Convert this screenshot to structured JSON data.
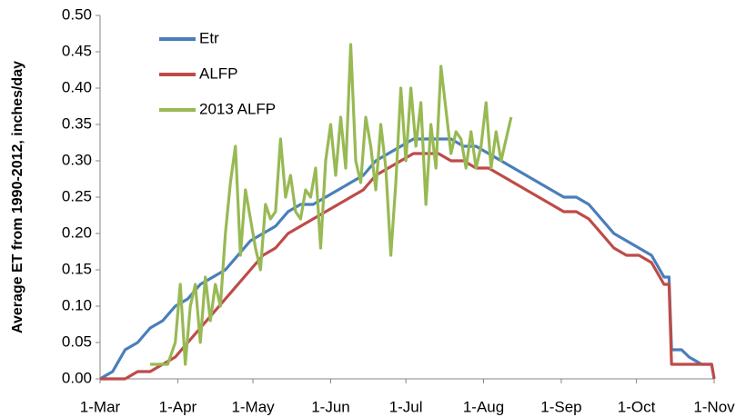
{
  "chart_data": {
    "type": "line",
    "y_label": "Average ET from 1990-2012, inches/day",
    "xlim": [
      0,
      245
    ],
    "xticks": [
      {
        "value": 0,
        "label": "1-Mar"
      },
      {
        "value": 31,
        "label": "1-Apr"
      },
      {
        "value": 61,
        "label": "1-May"
      },
      {
        "value": 92,
        "label": "1-Jun"
      },
      {
        "value": 122,
        "label": "1-Jul"
      },
      {
        "value": 153,
        "label": "1-Aug"
      },
      {
        "value": 184,
        "label": "1-Sep"
      },
      {
        "value": 214,
        "label": "1-Oct"
      },
      {
        "value": 245,
        "label": "1-Nov"
      }
    ],
    "ylim": [
      0,
      0.5
    ],
    "yticks": [
      {
        "value": 0,
        "label": "0.00"
      },
      {
        "value": 0.05,
        "label": "0.05"
      },
      {
        "value": 0.1,
        "label": "0.10"
      },
      {
        "value": 0.15,
        "label": "0.15"
      },
      {
        "value": 0.2,
        "label": "0.20"
      },
      {
        "value": 0.25,
        "label": "0.25"
      },
      {
        "value": 0.3,
        "label": "0.30"
      },
      {
        "value": 0.35,
        "label": "0.35"
      },
      {
        "value": 0.4,
        "label": "0.40"
      },
      {
        "value": 0.45,
        "label": "0.45"
      },
      {
        "value": 0.5,
        "label": "0.50"
      }
    ],
    "grid": false,
    "legend": "upper left",
    "series": [
      {
        "name": "Etr",
        "color": "#4a7ebb",
        "x": [
          0,
          5,
          10,
          15,
          20,
          25,
          30,
          35,
          40,
          45,
          50,
          55,
          60,
          65,
          70,
          75,
          80,
          85,
          90,
          95,
          100,
          105,
          110,
          115,
          120,
          125,
          130,
          135,
          140,
          145,
          150,
          155,
          160,
          165,
          170,
          175,
          180,
          185,
          190,
          195,
          200,
          205,
          210,
          215,
          220,
          225,
          227,
          228,
          232,
          235,
          240,
          244,
          245
        ],
        "values": [
          0,
          0.01,
          0.04,
          0.05,
          0.07,
          0.08,
          0.1,
          0.11,
          0.13,
          0.14,
          0.15,
          0.17,
          0.19,
          0.2,
          0.21,
          0.23,
          0.24,
          0.24,
          0.25,
          0.26,
          0.27,
          0.28,
          0.3,
          0.31,
          0.32,
          0.33,
          0.33,
          0.33,
          0.33,
          0.32,
          0.32,
          0.31,
          0.3,
          0.29,
          0.28,
          0.27,
          0.26,
          0.25,
          0.25,
          0.24,
          0.22,
          0.2,
          0.19,
          0.18,
          0.17,
          0.14,
          0.14,
          0.04,
          0.04,
          0.03,
          0.02,
          0.02,
          0
        ]
      },
      {
        "name": "ALFP",
        "color": "#be4b48",
        "x": [
          0,
          5,
          10,
          15,
          20,
          25,
          30,
          35,
          40,
          45,
          50,
          55,
          60,
          65,
          70,
          75,
          80,
          85,
          90,
          95,
          100,
          105,
          110,
          115,
          120,
          125,
          130,
          135,
          140,
          145,
          150,
          155,
          160,
          165,
          170,
          175,
          180,
          185,
          190,
          195,
          200,
          205,
          210,
          215,
          220,
          225,
          227,
          228,
          232,
          235,
          240,
          244,
          245
        ],
        "values": [
          0,
          0,
          0,
          0.01,
          0.01,
          0.02,
          0.03,
          0.05,
          0.07,
          0.09,
          0.11,
          0.13,
          0.15,
          0.17,
          0.18,
          0.2,
          0.21,
          0.22,
          0.23,
          0.24,
          0.25,
          0.26,
          0.28,
          0.29,
          0.3,
          0.31,
          0.31,
          0.31,
          0.3,
          0.3,
          0.29,
          0.29,
          0.28,
          0.27,
          0.26,
          0.25,
          0.24,
          0.23,
          0.23,
          0.22,
          0.2,
          0.18,
          0.17,
          0.17,
          0.16,
          0.13,
          0.13,
          0.02,
          0.02,
          0.02,
          0.02,
          0.02,
          0
        ]
      },
      {
        "name": "2013 ALFP",
        "color": "#98b954",
        "x": [
          20,
          24,
          27,
          30,
          32,
          34,
          36,
          38,
          40,
          42,
          44,
          46,
          48,
          50,
          52,
          54,
          56,
          58,
          60,
          62,
          64,
          66,
          68,
          70,
          72,
          74,
          76,
          78,
          80,
          82,
          84,
          86,
          88,
          90,
          92,
          94,
          96,
          98,
          100,
          102,
          104,
          106,
          108,
          110,
          112,
          114,
          116,
          118,
          120,
          122,
          124,
          126,
          128,
          130,
          132,
          134,
          136,
          138,
          140,
          142,
          144,
          146,
          148,
          150,
          152,
          154,
          156,
          158,
          160,
          162,
          164
        ],
        "values": [
          0.02,
          0.02,
          0.02,
          0.05,
          0.13,
          0.02,
          0.1,
          0.13,
          0.05,
          0.14,
          0.08,
          0.13,
          0.1,
          0.2,
          0.27,
          0.32,
          0.17,
          0.26,
          0.22,
          0.18,
          0.15,
          0.24,
          0.22,
          0.23,
          0.33,
          0.25,
          0.28,
          0.23,
          0.22,
          0.26,
          0.25,
          0.29,
          0.18,
          0.3,
          0.35,
          0.28,
          0.36,
          0.29,
          0.46,
          0.3,
          0.27,
          0.36,
          0.32,
          0.26,
          0.35,
          0.29,
          0.17,
          0.27,
          0.4,
          0.3,
          0.4,
          0.32,
          0.38,
          0.24,
          0.35,
          0.29,
          0.43,
          0.37,
          0.31,
          0.34,
          0.33,
          0.29,
          0.34,
          0.29,
          0.32,
          0.38,
          0.29,
          0.34,
          0.3,
          0.33,
          0.36
        ]
      }
    ]
  }
}
